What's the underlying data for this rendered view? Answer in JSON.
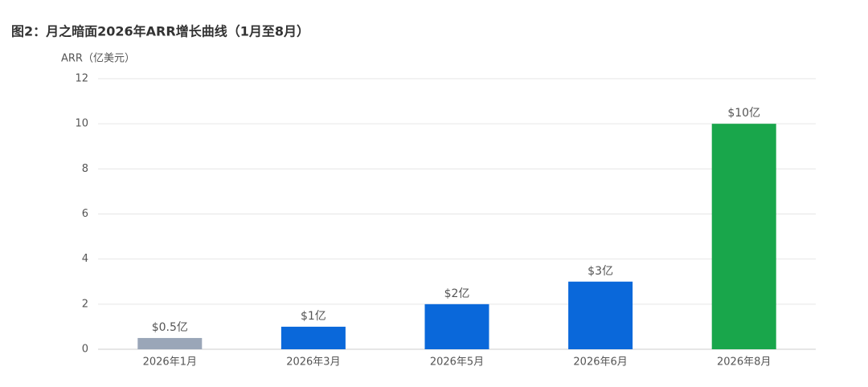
{
  "chart_data": {
    "type": "bar",
    "title": "图2：月之暗面2026年ARR增长曲线（1月至8月）",
    "y_label": "ARR（亿美元）",
    "categories": [
      "2026年1月",
      "2026年3月",
      "2026年5月",
      "2026年6月",
      "2026年8月"
    ],
    "values": [
      0.5,
      1,
      2,
      3,
      10
    ],
    "value_labels": [
      "$0.5亿",
      "$1亿",
      "$2亿",
      "$3亿",
      "$10亿"
    ],
    "colors": [
      "#9aa6b8",
      "#0a68da",
      "#0a68da",
      "#0a68da",
      "#19a64b"
    ],
    "ylim": [
      0,
      12
    ],
    "yticks": [
      0,
      2,
      4,
      6,
      8,
      10,
      12
    ],
    "grid": true
  }
}
